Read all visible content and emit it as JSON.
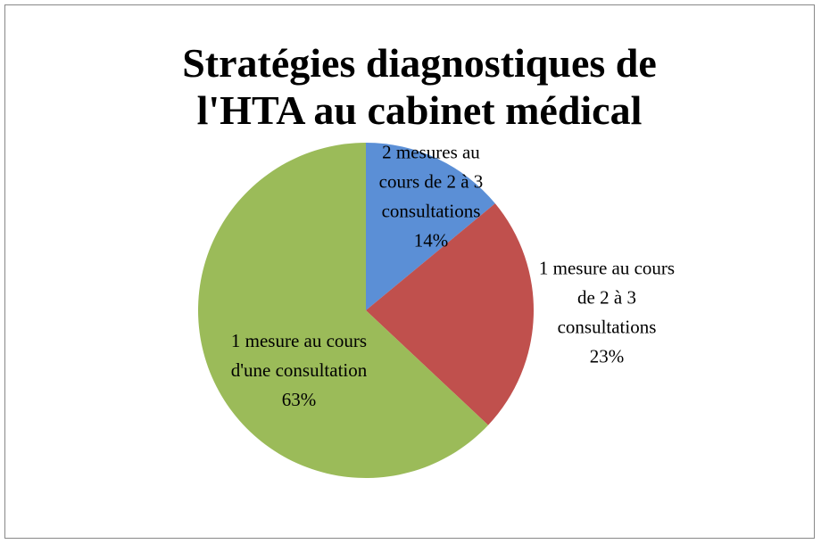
{
  "chart_data": {
    "type": "pie",
    "title": "Stratégies diagnostiques de l'HTA au cabinet médical",
    "categories": [
      "2 mesures au cours de 2 à 3 consultations",
      "1 mesure au cours de 2 à 3 consultations",
      "1 mesure au cours d'une consultation"
    ],
    "values": [
      14,
      23,
      63
    ],
    "value_labels": [
      "14%",
      "23%",
      "63%"
    ],
    "colors": [
      "#5b8fd6",
      "#c0504d",
      "#9bbb59"
    ]
  }
}
